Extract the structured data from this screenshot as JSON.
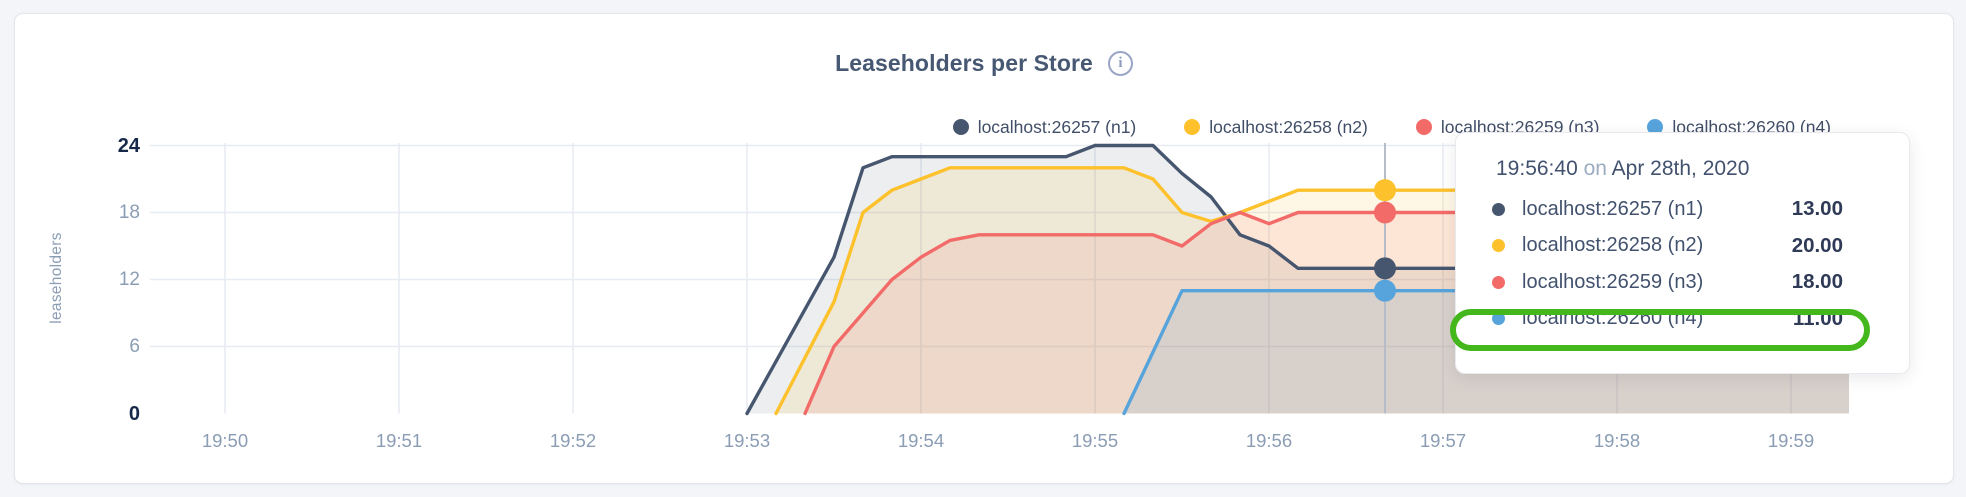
{
  "card": {
    "title": "Leaseholders per Store",
    "info_icon": "i"
  },
  "chart_data": {
    "type": "area",
    "title": "Leaseholders per Store",
    "ylabel": "leaseholders",
    "ylim": [
      0,
      24
    ],
    "yticks": [
      0,
      6,
      12,
      18,
      24
    ],
    "yticks_bold": [
      0,
      24
    ],
    "xticks": [
      "19:50",
      "19:51",
      "19:52",
      "19:53",
      "19:54",
      "19:55",
      "19:56",
      "19:57",
      "19:58",
      "19:59"
    ],
    "grid": true,
    "legend_position": "top-right",
    "hover_time": "19:56:40",
    "series": [
      {
        "name": "localhost:26257 (n1)",
        "color": "#47566F",
        "fill_opacity": 0.1,
        "points": [
          [
            "19:53:00",
            0
          ],
          [
            "19:53:30",
            14
          ],
          [
            "19:53:40",
            22
          ],
          [
            "19:53:50",
            23
          ],
          [
            "19:54:50",
            23
          ],
          [
            "19:55:00",
            24
          ],
          [
            "19:55:20",
            24
          ],
          [
            "19:55:30",
            21.5
          ],
          [
            "19:55:40",
            19.4
          ],
          [
            "19:55:50",
            16
          ],
          [
            "19:56:00",
            15
          ],
          [
            "19:56:10",
            13
          ],
          [
            "19:59:20",
            13
          ]
        ]
      },
      {
        "name": "localhost:26258 (n2)",
        "color": "#FDC12C",
        "fill_opacity": 0.12,
        "points": [
          [
            "19:53:10",
            0
          ],
          [
            "19:53:30",
            10
          ],
          [
            "19:53:40",
            18
          ],
          [
            "19:53:50",
            20
          ],
          [
            "19:54:00",
            21
          ],
          [
            "19:54:10",
            22
          ],
          [
            "19:55:10",
            22
          ],
          [
            "19:55:20",
            21
          ],
          [
            "19:55:30",
            18
          ],
          [
            "19:55:40",
            17.2
          ],
          [
            "19:55:50",
            18
          ],
          [
            "19:56:00",
            19
          ],
          [
            "19:56:10",
            20
          ],
          [
            "19:59:20",
            20
          ]
        ]
      },
      {
        "name": "localhost:26259 (n3)",
        "color": "#F26B68",
        "fill_opacity": 0.12,
        "points": [
          [
            "19:53:20",
            0
          ],
          [
            "19:53:30",
            6
          ],
          [
            "19:53:40",
            9
          ],
          [
            "19:53:50",
            12
          ],
          [
            "19:54:00",
            14
          ],
          [
            "19:54:10",
            15.5
          ],
          [
            "19:54:20",
            16
          ],
          [
            "19:55:20",
            16
          ],
          [
            "19:55:30",
            15
          ],
          [
            "19:55:40",
            17
          ],
          [
            "19:55:50",
            18
          ],
          [
            "19:56:00",
            17
          ],
          [
            "19:56:10",
            18
          ],
          [
            "19:59:20",
            18
          ]
        ]
      },
      {
        "name": "localhost:26260 (n4)",
        "color": "#57A4DC",
        "fill_opacity": 0.14,
        "points": [
          [
            "19:55:10",
            0
          ],
          [
            "19:55:30",
            11
          ],
          [
            "19:59:20",
            11
          ]
        ]
      }
    ]
  },
  "tooltip": {
    "time": "19:56:40",
    "connector": "on",
    "date": "Apr 28th, 2020",
    "highlight_color": "#43B71C",
    "rows": [
      {
        "name": "localhost:26257 (n1)",
        "value": "13.00",
        "color": "#47566F",
        "highlighted": false
      },
      {
        "name": "localhost:26258 (n2)",
        "value": "20.00",
        "color": "#FDC12C",
        "highlighted": false
      },
      {
        "name": "localhost:26259 (n3)",
        "value": "18.00",
        "color": "#F26B68",
        "highlighted": false
      },
      {
        "name": "localhost:26260 (n4)",
        "value": "11.00",
        "color": "#57A4DC",
        "highlighted": true
      }
    ]
  },
  "style": {
    "grid_color": "#e7ebf2",
    "crosshair_color": "#b6bdc9",
    "tick_color_light": "#8b9db4",
    "tick_color_bold": "#16294a",
    "title_color": "#475872"
  }
}
